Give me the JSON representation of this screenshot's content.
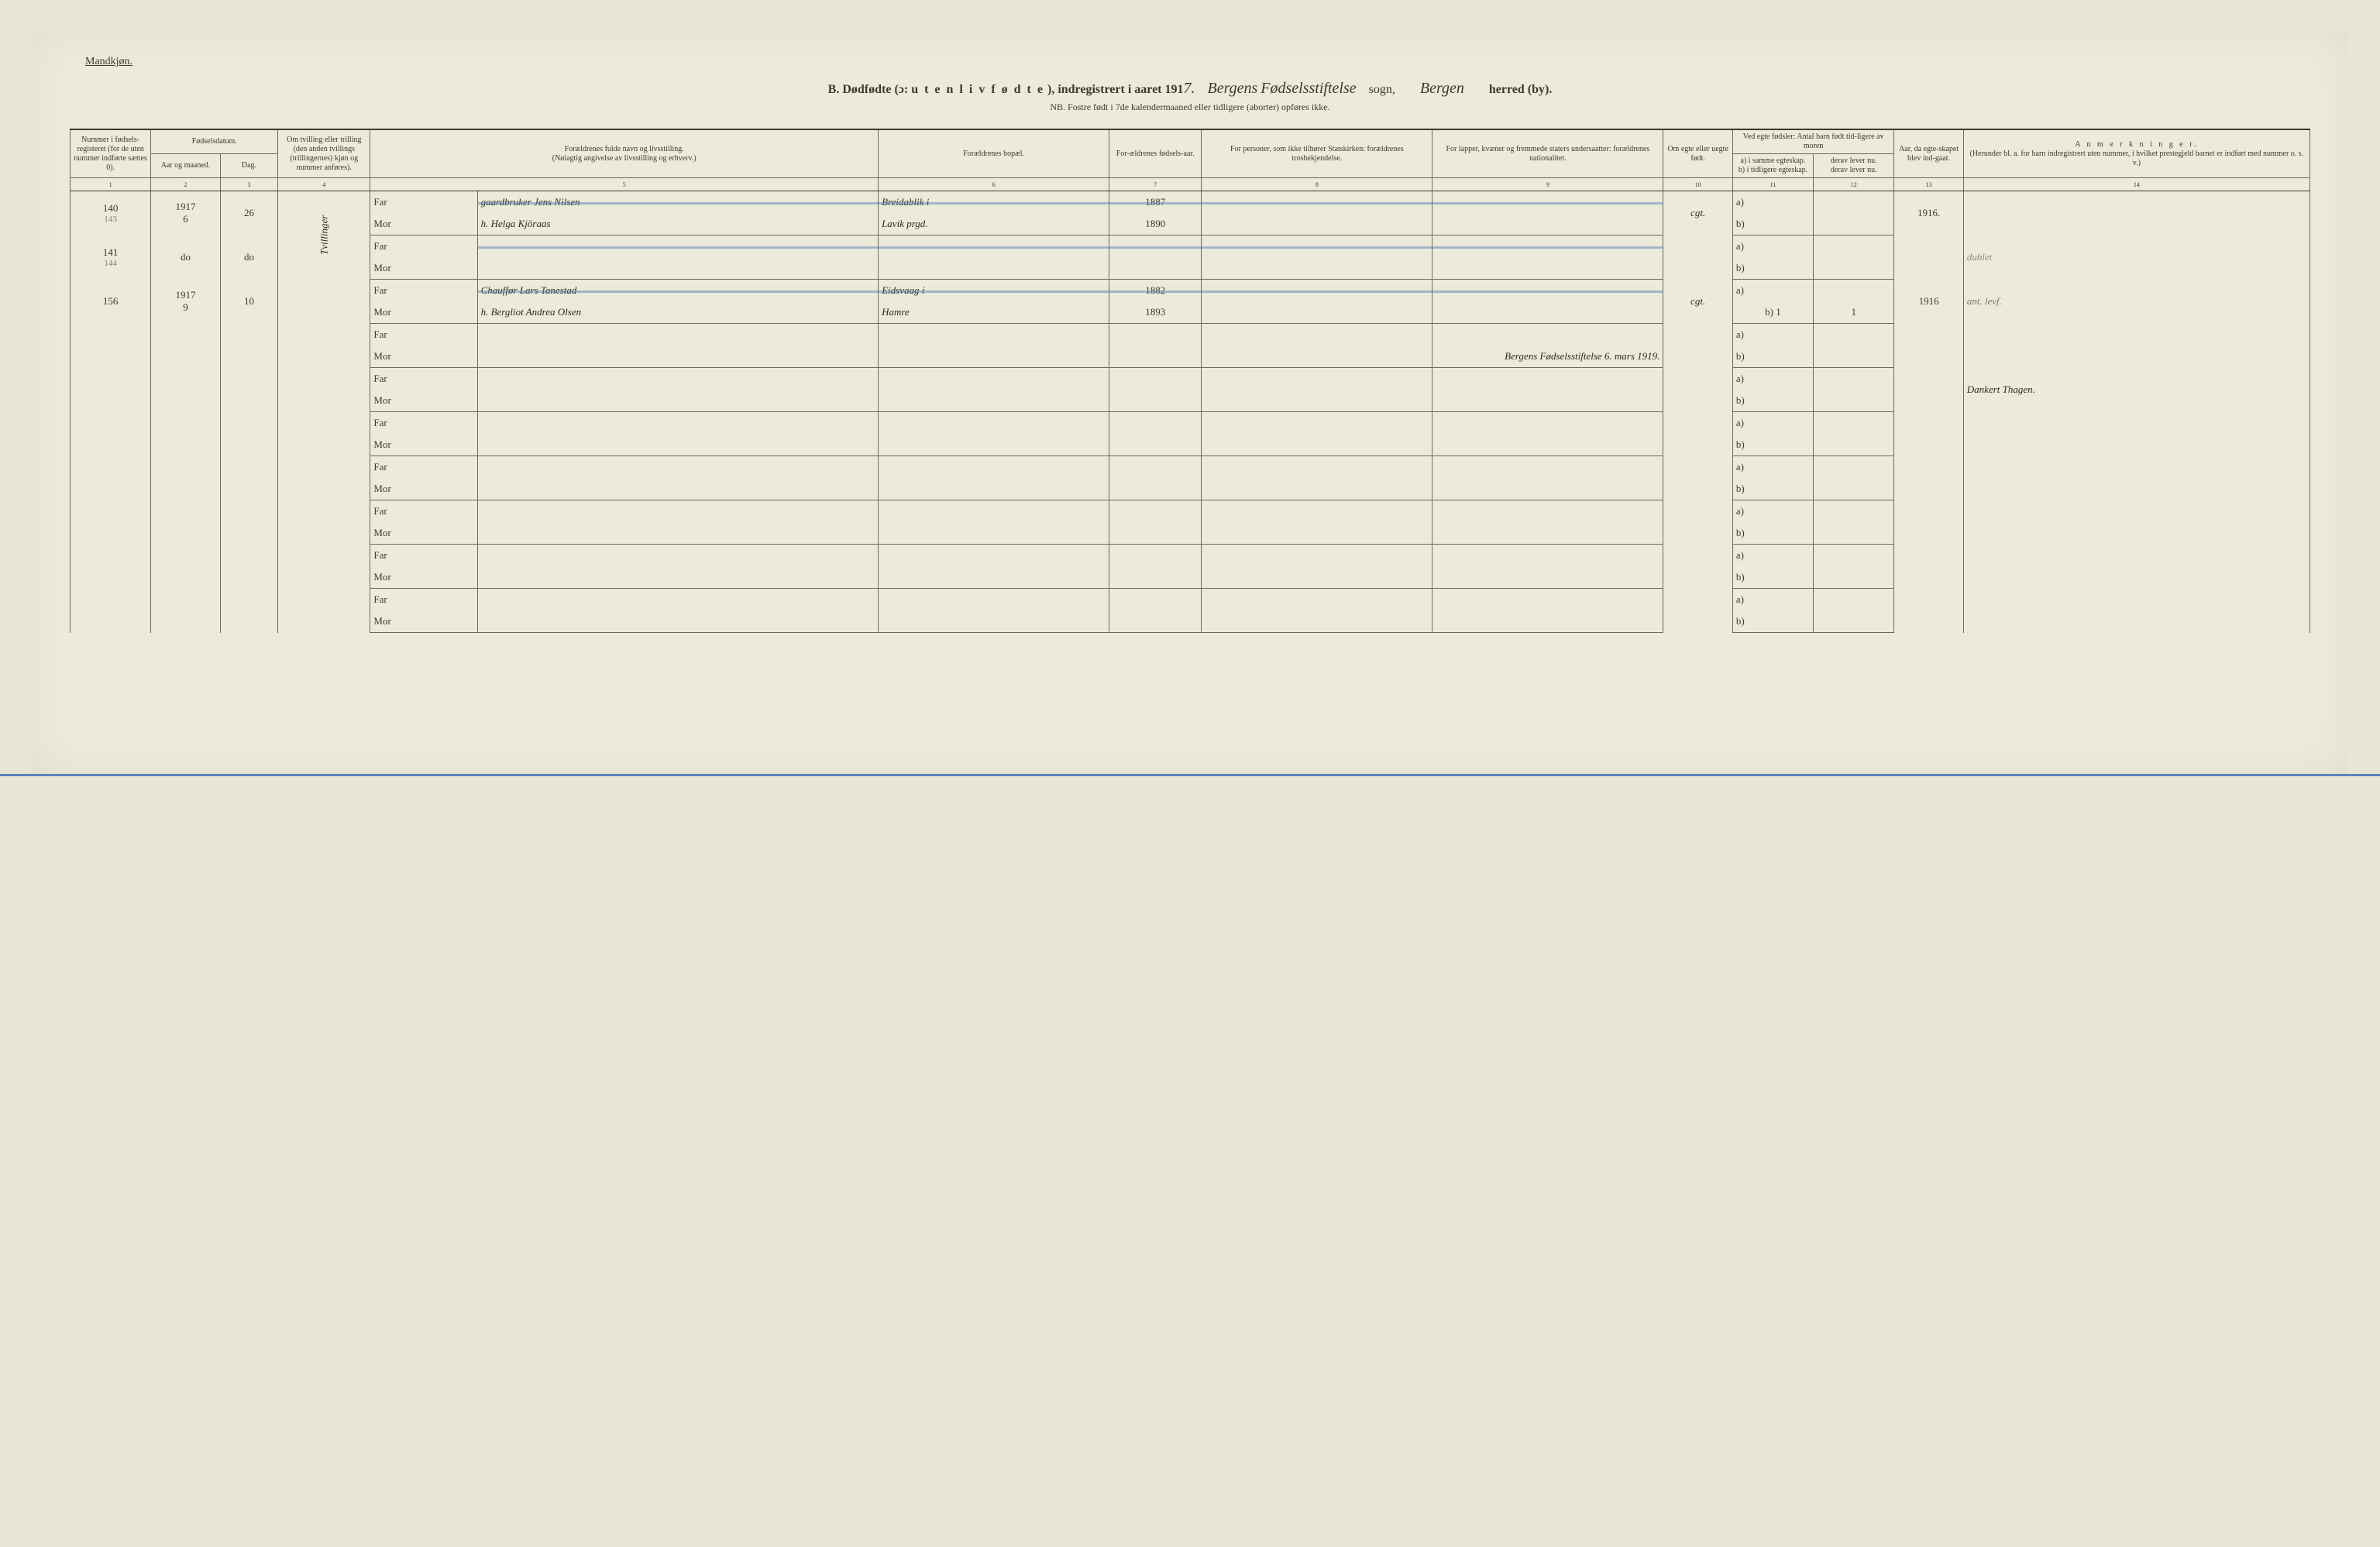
{
  "header": {
    "mandkjon": "Mandkjøn.",
    "title_prefix": "B.  Dødfødte (ɔ:",
    "title_spaced": "u t e n  l i v  f ø d t e",
    "title_mid": "), indregistrert i aaret 191",
    "year_suffix": "7.",
    "sogn_hand1": "Bergens",
    "sogn_hand2": "Fødselsstiftelse",
    "sogn_label": "sogn,",
    "herred_hand": "Bergen",
    "herred_label": "herred (by).",
    "subtitle": "NB.  Fostre født i 7de kalendermaaned eller tidligere (aborter) opføres ikke."
  },
  "columns": {
    "c1": "Nummer i fødsels-registeret (for de uten nummer indførte sættes 0).",
    "c2_top": "Fødselsdatum.",
    "c2a": "Aar og maaned.",
    "c2b": "Dag.",
    "c4": "Om tvilling eller trilling (den anden tvillings (trillingernes) kjøn og nummer anføres).",
    "c5_top": "Forældrenes fulde navn og livsstilling.",
    "c5_sub": "(Nøiagtig angivelse av livsstilling og erhverv.)",
    "c6": "Forældrenes bopæl.",
    "c7": "For-ældrenes fødsels-aar.",
    "c8": "For personer, som ikke tilhører Statskirken: forældrenes trosbekjendelse.",
    "c9": "For lapper, kvæner og fremmede staters undersaatter: forældrenes nationalitet.",
    "c10": "Om egte eller uegte født.",
    "c11_top": "Ved egte fødsler: Antal barn født tid-ligere av moren",
    "c11a": "a) i samme egteskap.",
    "c11b": "b) i tidligere egteskap.",
    "c12a": "derav lever nu.",
    "c12b": "derav lever nu.",
    "c13": "Aar, da egte-skapet blev ind-gaat.",
    "c14_top": "A n m e r k n i n g e r.",
    "c14_sub": "(Herunder bl. a. for barn indregistrert uten nummer, i hvilket prestegjeld barnet er indført med nummer o. s. v.)",
    "nums": [
      "1",
      "2",
      "3",
      "4",
      "5",
      "6",
      "7",
      "8",
      "9",
      "10",
      "11",
      "12",
      "13",
      "14"
    ],
    "far": "Far",
    "mor": "Mor",
    "a": "a)",
    "b": "b)"
  },
  "rows": [
    {
      "num": "140",
      "num_sub": "143",
      "year": "1917",
      "month": "6",
      "day": "26",
      "tvilling": "Tvillinger",
      "far_name": "gaardbruker Jens Nilsen",
      "far_bopael": "Breidablik i",
      "far_aar": "1887",
      "mor_name": "h. Helga Kjöraas",
      "mor_bopael": "Lavik prgd.",
      "mor_aar": "1890",
      "egte": "cgt.",
      "col13": "1916.",
      "note": ""
    },
    {
      "num": "141",
      "num_sub": "144",
      "year": "do",
      "month": "",
      "day": "do",
      "tvilling": "",
      "far_name": "",
      "far_bopael": "",
      "far_aar": "",
      "mor_name": "",
      "mor_bopael": "",
      "mor_aar": "",
      "egte": "",
      "col13": "",
      "note": "dublet"
    },
    {
      "num": "156",
      "num_sub": "",
      "year": "1917",
      "month": "9",
      "day": "10",
      "tvilling": "",
      "far_name": "Chauffør Lars Tanestad",
      "far_bopael": "Eidsvaag i",
      "far_aar": "1882",
      "mor_name": "h. Bergliot Andrea Olsen",
      "mor_bopael": "Hamre",
      "mor_aar": "1893",
      "egte": "cgt.",
      "c11b": "1",
      "c12b": "1",
      "col13": "1916",
      "note": "ant. levf."
    }
  ],
  "signature_line": {
    "text": "Bergens Fødselsstiftelse  6. mars  1919.",
    "name": "Dankert Thagen."
  },
  "colors": {
    "paper": "#eceadb",
    "ink": "#3a3a2e",
    "blue_strike": "rgba(90,130,180,0.5)"
  }
}
